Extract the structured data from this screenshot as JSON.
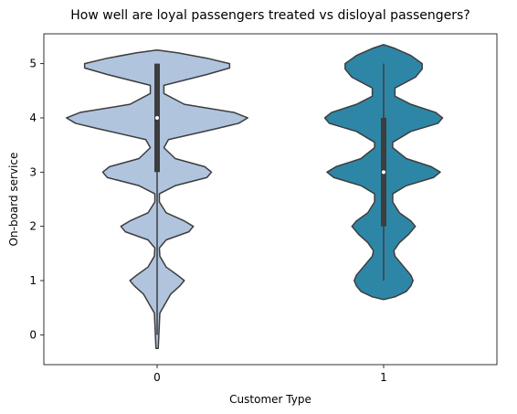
{
  "chart_data": {
    "type": "violin",
    "title": "How well are loyal passengers treated vs disloyal passengers?",
    "xlabel": "Customer Type",
    "ylabel": "On-board service",
    "categories": [
      "0",
      "1"
    ],
    "yticks": [
      0,
      1,
      2,
      3,
      4,
      5
    ],
    "ylim": [
      -0.55,
      5.55
    ],
    "grid": false,
    "series": [
      {
        "category": "0",
        "color": "#b0c4de",
        "extent": [
          -0.25,
          5.25
        ],
        "width_profile": [
          [
            -0.25,
            0.005
          ],
          [
            0.4,
            0.012
          ],
          [
            0.75,
            0.06
          ],
          [
            0.9,
            0.1
          ],
          [
            1.0,
            0.12
          ],
          [
            1.1,
            0.09
          ],
          [
            1.25,
            0.04
          ],
          [
            1.45,
            0.012
          ],
          [
            1.6,
            0.01
          ],
          [
            1.75,
            0.04
          ],
          [
            1.9,
            0.14
          ],
          [
            2.0,
            0.16
          ],
          [
            2.1,
            0.12
          ],
          [
            2.25,
            0.04
          ],
          [
            2.45,
            0.01
          ],
          [
            2.6,
            0.01
          ],
          [
            2.75,
            0.08
          ],
          [
            2.9,
            0.22
          ],
          [
            3.0,
            0.24
          ],
          [
            3.1,
            0.21
          ],
          [
            3.25,
            0.08
          ],
          [
            3.45,
            0.03
          ],
          [
            3.6,
            0.05
          ],
          [
            3.8,
            0.26
          ],
          [
            3.9,
            0.36
          ],
          [
            4.0,
            0.4
          ],
          [
            4.1,
            0.34
          ],
          [
            4.25,
            0.12
          ],
          [
            4.45,
            0.03
          ],
          [
            4.6,
            0.03
          ],
          [
            4.8,
            0.22
          ],
          [
            4.92,
            0.32
          ],
          [
            5.0,
            0.32
          ],
          [
            5.1,
            0.22
          ],
          [
            5.2,
            0.09
          ],
          [
            5.25,
            0.0
          ]
        ],
        "box": {
          "q1": 3,
          "median": 4,
          "q3": 5,
          "whisker_low": 0,
          "whisker_high": 5
        }
      },
      {
        "category": "1",
        "color": "#2e86a7",
        "extent": [
          0.65,
          5.35
        ],
        "width_profile": [
          [
            0.65,
            0.0
          ],
          [
            0.7,
            0.05
          ],
          [
            0.8,
            0.1
          ],
          [
            0.9,
            0.12
          ],
          [
            1.0,
            0.13
          ],
          [
            1.1,
            0.12
          ],
          [
            1.25,
            0.09
          ],
          [
            1.45,
            0.05
          ],
          [
            1.55,
            0.045
          ],
          [
            1.7,
            0.07
          ],
          [
            1.85,
            0.11
          ],
          [
            2.0,
            0.14
          ],
          [
            2.1,
            0.12
          ],
          [
            2.25,
            0.07
          ],
          [
            2.45,
            0.04
          ],
          [
            2.6,
            0.04
          ],
          [
            2.75,
            0.1
          ],
          [
            2.9,
            0.22
          ],
          [
            3.0,
            0.25
          ],
          [
            3.1,
            0.21
          ],
          [
            3.25,
            0.1
          ],
          [
            3.45,
            0.04
          ],
          [
            3.55,
            0.04
          ],
          [
            3.75,
            0.12
          ],
          [
            3.9,
            0.24
          ],
          [
            4.0,
            0.26
          ],
          [
            4.1,
            0.23
          ],
          [
            4.25,
            0.12
          ],
          [
            4.4,
            0.05
          ],
          [
            4.55,
            0.05
          ],
          [
            4.75,
            0.14
          ],
          [
            4.9,
            0.17
          ],
          [
            5.0,
            0.17
          ],
          [
            5.15,
            0.12
          ],
          [
            5.28,
            0.05
          ],
          [
            5.35,
            0.0
          ]
        ],
        "box": {
          "q1": 2,
          "median": 3,
          "q3": 4,
          "whisker_low": 1,
          "whisker_high": 5
        }
      }
    ]
  }
}
